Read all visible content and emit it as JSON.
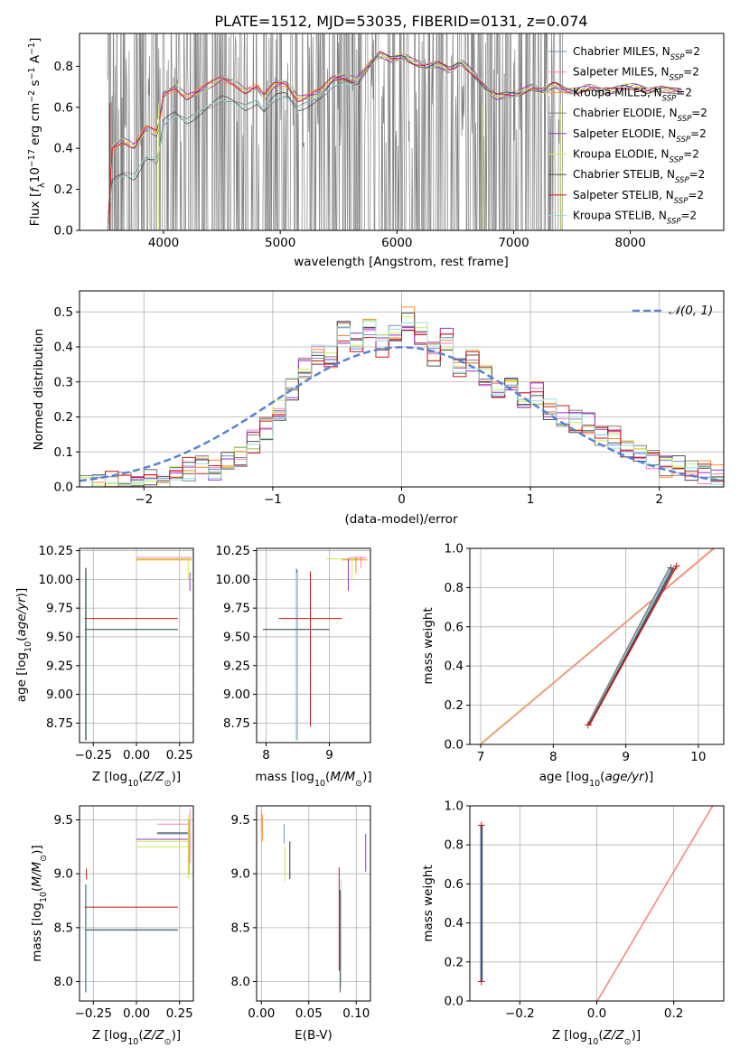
{
  "title": "PLATE=1512, MJD=53035, FIBERID=0131, z=0.074",
  "models": [
    {
      "name": "Chabrier MILES",
      "color": "#6b8fd6"
    },
    {
      "name": "Salpeter MILES",
      "color": "#ff7fbf"
    },
    {
      "name": "Kroupa MILES",
      "color": "#ff8c1a"
    },
    {
      "name": "Chabrier ELODIE",
      "color": "#808080"
    },
    {
      "name": "Salpeter ELODIE",
      "color": "#9b30c8"
    },
    {
      "name": "Kroupa ELODIE",
      "color": "#c8f050"
    },
    {
      "name": "Chabrier STELIB",
      "color": "#505050"
    },
    {
      "name": "Salpeter STELIB",
      "color": "#c81414"
    },
    {
      "name": "Kroupa STELIB",
      "color": "#96dcdc"
    }
  ],
  "nssp_label": "N",
  "nssp_sub": "SSP",
  "nssp_val": "=2",
  "chart_data": [
    {
      "id": "spectrum",
      "type": "line",
      "xlabel": "wavelength [Angstrom, rest frame]",
      "ylabel": "Flux [f_λ10^-17 erg cm^-2 s^-1 A^-1]",
      "xlim": [
        3280,
        8800
      ],
      "ylim": [
        0,
        0.96
      ],
      "xticks": [
        4000,
        5000,
        6000,
        7000,
        8000
      ],
      "yticks": [
        0.0,
        0.2,
        0.4,
        0.6,
        0.8
      ],
      "data_color": "#808080",
      "data_range": [
        3520,
        7420
      ],
      "model_curve_x": [
        3520,
        3560,
        3650,
        3750,
        3850,
        3950,
        4000,
        4100,
        4200,
        4300,
        4400,
        4500,
        4600,
        4700,
        4800,
        4860,
        4950,
        5050,
        5150,
        5250,
        5350,
        5450,
        5550,
        5650,
        5750,
        5850,
        5950,
        6050,
        6150,
        6250,
        6350,
        6450,
        6550,
        6650,
        6750,
        6850,
        6950,
        7050,
        7150,
        7250,
        7350,
        7450,
        7550,
        7650,
        7750,
        7850,
        7950,
        8050,
        8150,
        8250,
        8350,
        8450
      ],
      "model_curve_y": [
        0.38,
        0.4,
        0.44,
        0.41,
        0.5,
        0.47,
        0.66,
        0.7,
        0.65,
        0.68,
        0.71,
        0.74,
        0.72,
        0.68,
        0.7,
        0.65,
        0.71,
        0.72,
        0.64,
        0.66,
        0.68,
        0.74,
        0.75,
        0.73,
        0.8,
        0.86,
        0.83,
        0.85,
        0.82,
        0.8,
        0.81,
        0.78,
        0.82,
        0.77,
        0.7,
        0.65,
        0.66,
        0.67,
        0.7,
        0.68,
        0.71,
        0.68,
        0.68,
        0.7,
        0.68,
        0.68,
        0.7,
        0.7,
        0.68,
        0.69,
        0.68,
        0.68
      ],
      "model_low_offset": -0.17
    },
    {
      "id": "residuals",
      "type": "histogram",
      "xlabel": "(data-model)/error",
      "ylabel": "Normed distribution",
      "xlim": [
        -2.5,
        2.5
      ],
      "ylim": [
        0,
        0.56
      ],
      "xticks": [
        -2,
        -1,
        0,
        1,
        2
      ],
      "yticks": [
        0.0,
        0.1,
        0.2,
        0.3,
        0.4,
        0.5
      ],
      "bin_edges": [
        -2.5,
        -2.4,
        -2.3,
        -2.2,
        -2.1,
        -2.0,
        -1.9,
        -1.8,
        -1.7,
        -1.6,
        -1.5,
        -1.4,
        -1.3,
        -1.2,
        -1.1,
        -1.0,
        -0.9,
        -0.8,
        -0.7,
        -0.6,
        -0.5,
        -0.4,
        -0.3,
        -0.2,
        -0.1,
        0.0,
        0.1,
        0.2,
        0.3,
        0.4,
        0.5,
        0.6,
        0.7,
        0.8,
        0.9,
        1.0,
        1.1,
        1.2,
        1.3,
        1.4,
        1.5,
        1.6,
        1.7,
        1.8,
        1.9,
        2.0,
        2.1,
        2.2,
        2.3,
        2.4,
        2.5
      ],
      "hist": [
        0.0,
        0.0,
        0.01,
        0.02,
        0.02,
        0.03,
        0.02,
        0.03,
        0.05,
        0.06,
        0.05,
        0.07,
        0.08,
        0.13,
        0.17,
        0.22,
        0.28,
        0.34,
        0.38,
        0.37,
        0.44,
        0.41,
        0.45,
        0.4,
        0.44,
        0.48,
        0.44,
        0.38,
        0.42,
        0.35,
        0.36,
        0.32,
        0.29,
        0.28,
        0.26,
        0.27,
        0.22,
        0.2,
        0.19,
        0.18,
        0.15,
        0.14,
        0.1,
        0.09,
        0.08,
        0.06,
        0.06,
        0.05,
        0.04,
        0.03
      ],
      "gauss_label": "𝒩(0, 1)",
      "gauss_color": "#5a82d2"
    },
    {
      "id": "age-Z",
      "type": "errorbar",
      "xlabel": "Z [log10(Z/Z☉)]",
      "ylabel": "age [log10(age/yr)]",
      "xlim": [
        -0.33,
        0.33
      ],
      "ylim": [
        8.58,
        10.27
      ],
      "xticks": [
        -0.25,
        0.0,
        0.25
      ],
      "yticks": [
        8.75,
        9.0,
        9.25,
        9.5,
        9.75,
        10.0,
        10.25
      ],
      "ytick_labels": [
        "8.75",
        "9.00",
        "9.25",
        "9.50",
        "9.75",
        "10.00",
        "10.25"
      ],
      "xtick_labels": [
        "−0.25",
        "0.00",
        "0.25"
      ]
    },
    {
      "id": "age-mass",
      "type": "errorbar",
      "xlabel": "mass [log10(M/M☉)]",
      "xlim": [
        7.85,
        9.65
      ],
      "ylim": [
        8.58,
        10.27
      ],
      "xticks": [
        8,
        9
      ],
      "yticks": [
        8.75,
        9.0,
        9.25,
        9.5,
        9.75,
        10.0,
        10.25
      ],
      "ytick_labels": [
        "8.75",
        "9.00",
        "9.25",
        "9.50",
        "9.75",
        "10.00",
        "10.25"
      ],
      "xtick_labels": [
        "8",
        "9"
      ]
    },
    {
      "id": "weight-age",
      "type": "line",
      "xlabel": "age [log10(age/yr)]",
      "ylabel": "mass weight",
      "xlim": [
        6.85,
        10.35
      ],
      "ylim": [
        0,
        1
      ],
      "xticks": [
        7,
        8,
        9,
        10
      ],
      "yticks": [
        0.0,
        0.2,
        0.4,
        0.6,
        0.8,
        1.0
      ],
      "xtick_labels": [
        "7",
        "8",
        "9",
        "10"
      ],
      "ytick_labels": [
        "0.0",
        "0.2",
        "0.4",
        "0.6",
        "0.8",
        "1.0"
      ]
    },
    {
      "id": "mass-Z",
      "type": "errorbar",
      "xlabel": "Z [log10(Z/Z☉)]",
      "ylabel": "mass [log10(M/M☉)]",
      "xlim": [
        -0.33,
        0.33
      ],
      "ylim": [
        7.82,
        9.63
      ],
      "xticks": [
        -0.25,
        0.0,
        0.25
      ],
      "yticks": [
        8.0,
        8.5,
        9.0,
        9.5
      ],
      "xtick_labels": [
        "−0.25",
        "0.00",
        "0.25"
      ],
      "ytick_labels": [
        "8.0",
        "8.5",
        "9.0",
        "9.5"
      ]
    },
    {
      "id": "mass-ebv",
      "type": "errorbar",
      "xlabel": "E(B-V)",
      "xlim": [
        -0.005,
        0.115
      ],
      "ylim": [
        7.82,
        9.63
      ],
      "xticks": [
        0.0,
        0.05,
        0.1
      ],
      "yticks": [
        8.0,
        8.5,
        9.0,
        9.5
      ],
      "xtick_labels": [
        "0.00",
        "0.05",
        "0.10"
      ],
      "ytick_labels": [
        "8.0",
        "8.5",
        "9.0",
        "9.5"
      ]
    },
    {
      "id": "weight-Z",
      "type": "line",
      "xlabel": "Z [log10(Z/Z☉)]",
      "ylabel": "mass weight",
      "xlim": [
        -0.33,
        0.33
      ],
      "ylim": [
        0,
        1
      ],
      "xticks": [
        -0.2,
        0.0,
        0.2
      ],
      "yticks": [
        0.0,
        0.2,
        0.4,
        0.6,
        0.8,
        1.0
      ],
      "xtick_labels": [
        "−0.2",
        "0.0",
        "0.2"
      ],
      "ytick_labels": [
        "0.0",
        "0.2",
        "0.4",
        "0.6",
        "0.8",
        "1.0"
      ]
    }
  ]
}
